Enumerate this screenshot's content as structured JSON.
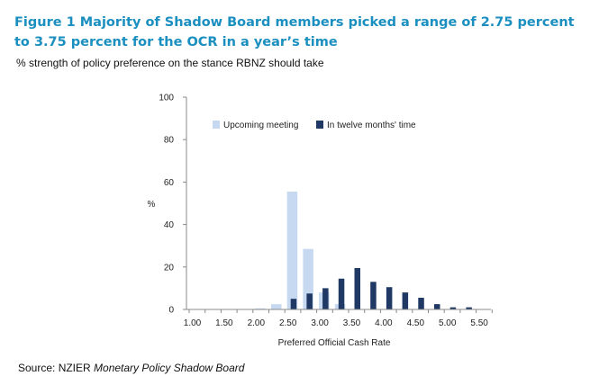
{
  "title": "Figure 1 Majority of Shadow Board members picked a range of 2.75 percent to 3.75 percent for the OCR in a year’s time",
  "subtitle": "% strength of policy preference on the stance RBNZ should take",
  "source": {
    "prefix": "Source: NZIER ",
    "italic": "Monetary Policy Shadow Board"
  },
  "colors": {
    "title": "#1b8fbf",
    "upcoming": "#c6d9f0",
    "twelve": "#1f3864"
  },
  "chart_data": {
    "type": "bar",
    "categories": [
      "1.00",
      "1.25",
      "1.50",
      "1.75",
      "2.00",
      "2.25",
      "2.50",
      "2.75",
      "3.00",
      "3.25",
      "3.50",
      "3.75",
      "4.00",
      "4.25",
      "4.50",
      "4.75",
      "5.00",
      "5.25",
      "5.50"
    ],
    "x_tick_labels": [
      "1.00",
      "1.50",
      "2.00",
      "2.50",
      "3.00",
      "3.50",
      "4.00",
      "4.50",
      "5.00",
      "5.50"
    ],
    "series": [
      {
        "name": "Upcoming meeting",
        "color": "#c6d9f0",
        "values": [
          0,
          0,
          0,
          0,
          0.5,
          2.5,
          55.5,
          28.5,
          8,
          2.5,
          0,
          0,
          0,
          0,
          0,
          0,
          0,
          0,
          0
        ]
      },
      {
        "name": "In twelve months' time",
        "color": "#1f3864",
        "values": [
          0,
          0,
          0,
          0,
          0,
          0,
          5,
          7.5,
          10,
          14.5,
          19.5,
          13,
          10.5,
          8,
          5.5,
          2.5,
          1,
          1,
          0
        ]
      }
    ],
    "xlabel": "Preferred Official Cash Rate",
    "ylabel": "%",
    "ylim": [
      0,
      100
    ],
    "yticks": [
      0,
      20,
      40,
      60,
      80,
      100
    ],
    "legend_position": "top",
    "grid": false
  }
}
